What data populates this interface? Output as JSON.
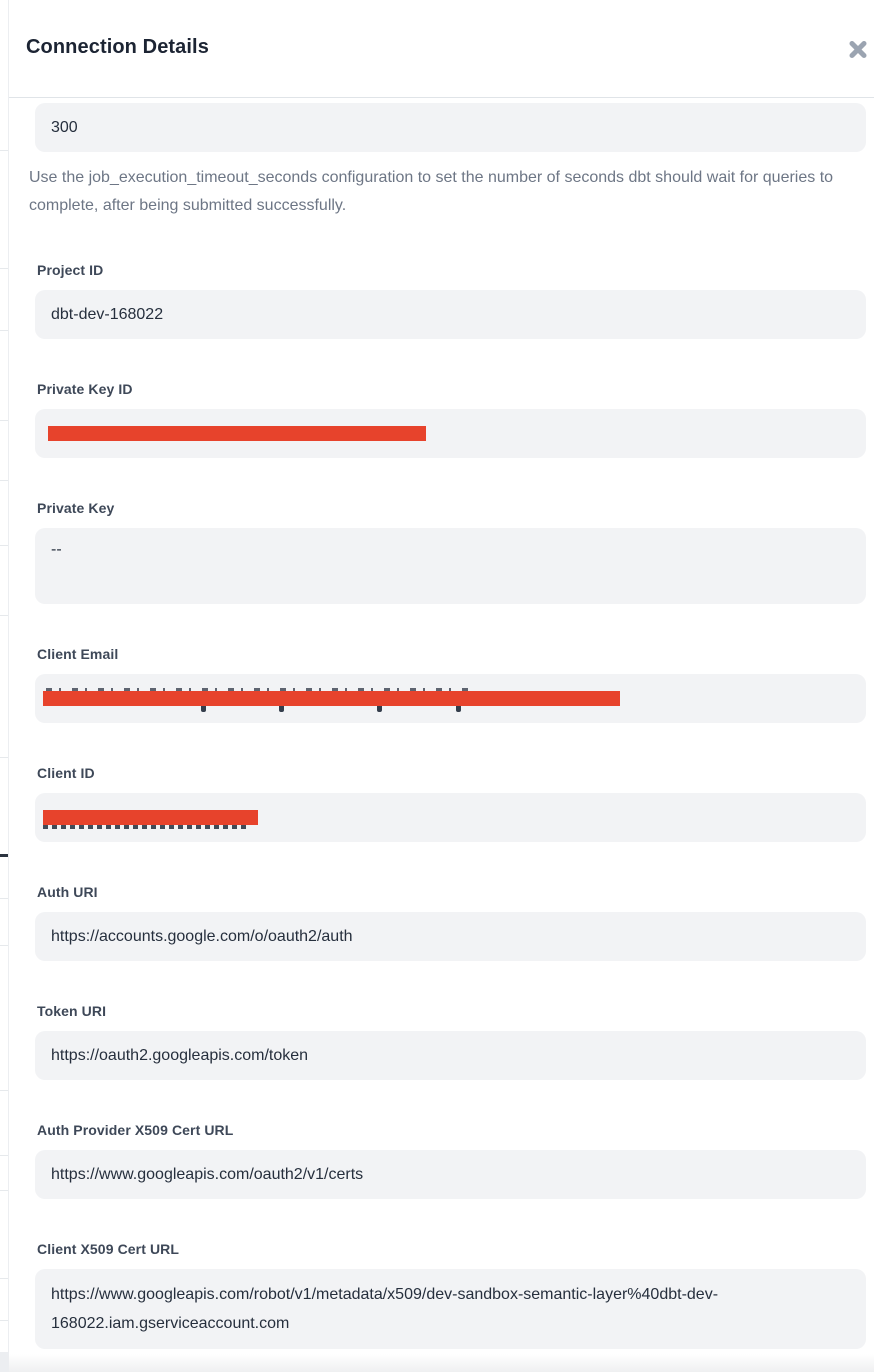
{
  "modal": {
    "title": "Connection Details"
  },
  "colors": {
    "redaction_bar": "#e7432c",
    "field_background": "#f2f3f5"
  },
  "fields": [
    {
      "value": "300",
      "help": "Use the job_execution_timeout_seconds configuration to set the number of seconds dbt should wait for queries to complete, after being submitted successfully."
    },
    {
      "label": "Project ID",
      "value": "dbt-dev-168022"
    },
    {
      "label": "Private Key ID",
      "value": "",
      "redacted": true
    },
    {
      "label": "Private Key",
      "value": "--"
    },
    {
      "label": "Client Email",
      "value": "",
      "redacted": true
    },
    {
      "label": "Client ID",
      "value": "",
      "redacted": true
    },
    {
      "label": "Auth URI",
      "value": "https://accounts.google.com/o/oauth2/auth"
    },
    {
      "label": "Token URI",
      "value": "https://oauth2.googleapis.com/token"
    },
    {
      "label": "Auth Provider X509 Cert URL",
      "value": "https://www.googleapis.com/oauth2/v1/certs"
    },
    {
      "label": "Client X509 Cert URL",
      "value": "https://www.googleapis.com/robot/v1/metadata/x509/dev-sandbox-semantic-layer%40dbt-dev-168022.iam.gserviceaccount.com"
    }
  ]
}
